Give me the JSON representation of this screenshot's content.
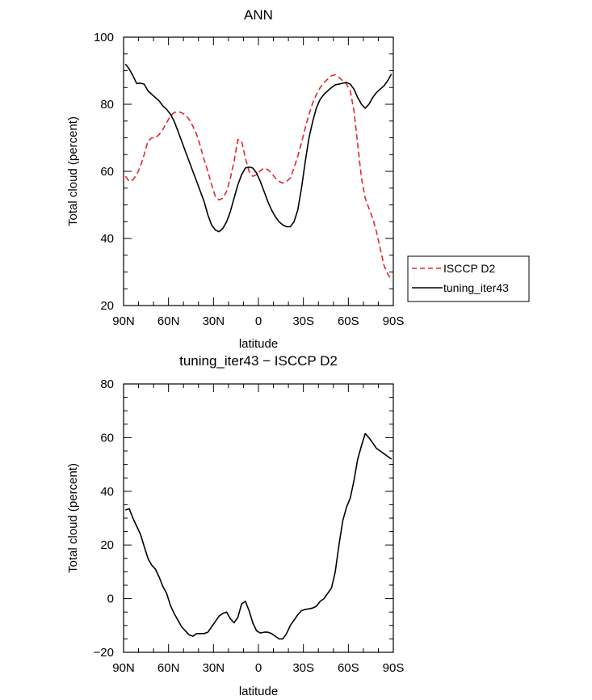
{
  "chart_data": [
    {
      "type": "line",
      "title": "ANN",
      "xlabel": "latitude",
      "ylabel": "Total cloud (percent)",
      "xlim": [
        -90,
        90
      ],
      "ylim": [
        20,
        100
      ],
      "xticks": [
        -90,
        -60,
        -30,
        0,
        30,
        60,
        90
      ],
      "xtick_labels": [
        "90N",
        "60N",
        "30N",
        "0",
        "30S",
        "60S",
        "90S"
      ],
      "yticks": [
        20,
        40,
        60,
        80,
        100
      ],
      "ytick_labels": [
        "20",
        "40",
        "60",
        "80",
        "100"
      ],
      "legend": "right",
      "series": [
        {
          "name": "ISCCP D2",
          "color": "#e8252b",
          "dash": "dashed",
          "x": [
            -88.75,
            -86.25,
            -83.75,
            -81.25,
            -78.75,
            -76.25,
            -73.75,
            -71.25,
            -68.75,
            -66.25,
            -63.75,
            -61.25,
            -58.75,
            -56.25,
            -53.75,
            -51.25,
            -48.75,
            -46.25,
            -43.75,
            -41.25,
            -38.75,
            -36.25,
            -33.75,
            -31.25,
            -28.75,
            -26.25,
            -23.75,
            -21.25,
            -18.75,
            -16.25,
            -13.75,
            -11.25,
            -8.75,
            -6.25,
            -3.75,
            -1.25,
            1.25,
            3.75,
            6.25,
            8.75,
            11.25,
            13.75,
            16.25,
            18.75,
            21.25,
            23.75,
            26.25,
            28.75,
            31.25,
            33.75,
            36.25,
            38.75,
            41.25,
            43.75,
            46.25,
            48.75,
            51.25,
            53.75,
            56.25,
            58.75,
            61.25,
            63.75,
            66.25,
            68.75,
            71.25,
            73.75,
            76.25,
            78.75,
            81.25,
            83.75,
            86.25,
            88.75
          ],
          "y": [
            58.5,
            57,
            57.5,
            59,
            61.5,
            65,
            69,
            70,
            70,
            71,
            72.5,
            74.5,
            76.5,
            77.5,
            77.8,
            77.5,
            76.8,
            75.5,
            73.5,
            71,
            67.5,
            63.5,
            60,
            56,
            52.5,
            51.5,
            52,
            54,
            58,
            63,
            69.5,
            69,
            64,
            60,
            58.5,
            59,
            60.2,
            61,
            60.5,
            59.5,
            58,
            57,
            56.5,
            57,
            58,
            61,
            64.5,
            68.5,
            73,
            77,
            80.5,
            83,
            85,
            86.5,
            87.5,
            88.5,
            88.8,
            88,
            87,
            86,
            84,
            78,
            68,
            58,
            52,
            49,
            46,
            42,
            37,
            32,
            29.5,
            27.5
          ]
        },
        {
          "name": "tuning_iter43",
          "color": "#000000",
          "dash": "solid",
          "x": [
            -88.75,
            -86.25,
            -83.75,
            -81.25,
            -78.75,
            -76.25,
            -73.75,
            -71.25,
            -68.75,
            -66.25,
            -63.75,
            -61.25,
            -58.75,
            -56.25,
            -53.75,
            -51.25,
            -48.75,
            -46.25,
            -43.75,
            -41.25,
            -38.75,
            -36.25,
            -33.75,
            -31.25,
            -28.75,
            -26.25,
            -23.75,
            -21.25,
            -18.75,
            -16.25,
            -13.75,
            -11.25,
            -8.75,
            -6.25,
            -3.75,
            -1.25,
            1.25,
            3.75,
            6.25,
            8.75,
            11.25,
            13.75,
            16.25,
            18.75,
            21.25,
            23.75,
            26.25,
            28.75,
            31.25,
            33.75,
            36.25,
            38.75,
            41.25,
            43.75,
            46.25,
            48.75,
            51.25,
            53.75,
            56.25,
            58.75,
            61.25,
            63.75,
            66.25,
            68.75,
            71.25,
            73.75,
            76.25,
            78.75,
            81.25,
            83.75,
            86.25,
            88.75
          ],
          "y": [
            92,
            90.5,
            88.5,
            86.2,
            86.3,
            86,
            84,
            83,
            82,
            81,
            79.5,
            78.5,
            77,
            75,
            72,
            69,
            66,
            63,
            60,
            57,
            54,
            51,
            47,
            44,
            42.5,
            42,
            43,
            45,
            48,
            52,
            56,
            59,
            61,
            61.3,
            61,
            59.5,
            57,
            54,
            51,
            48.5,
            46.5,
            45,
            44,
            43.5,
            43.5,
            45,
            48.5,
            55,
            63,
            70,
            75,
            79,
            81.5,
            83,
            84,
            85,
            85.8,
            86,
            86.3,
            86.5,
            86,
            84.5,
            82,
            80,
            78.8,
            80,
            82,
            83.5,
            84.5,
            85.5,
            87,
            89
          ]
        }
      ]
    },
    {
      "type": "line",
      "title": "tuning_iter43 − ISCCP D2",
      "xlabel": "latitude",
      "ylabel": "Total cloud (percent)",
      "xlim": [
        -90,
        90
      ],
      "ylim": [
        -20,
        80
      ],
      "xticks": [
        -90,
        -60,
        -30,
        0,
        30,
        60,
        90
      ],
      "xtick_labels": [
        "90N",
        "60N",
        "30N",
        "0",
        "30S",
        "60S",
        "90S"
      ],
      "yticks": [
        -20,
        0,
        20,
        40,
        60,
        80
      ],
      "ytick_labels": [
        "−20",
        "0",
        "20",
        "40",
        "60",
        "80"
      ],
      "series": [
        {
          "name": "",
          "color": "#000000",
          "dash": "solid",
          "x": [
            -88.75,
            -86.25,
            -83.75,
            -81.25,
            -78.75,
            -76.25,
            -73.75,
            -71.25,
            -68.75,
            -66.25,
            -63.75,
            -61.25,
            -58.75,
            -56.25,
            -53.75,
            -51.25,
            -48.75,
            -46.25,
            -43.75,
            -41.25,
            -38.75,
            -36.25,
            -33.75,
            -31.25,
            -28.75,
            -26.25,
            -23.75,
            -21.25,
            -18.75,
            -16.25,
            -13.75,
            -11.25,
            -8.75,
            -6.25,
            -3.75,
            -1.25,
            1.25,
            3.75,
            6.25,
            8.75,
            11.25,
            13.75,
            16.25,
            18.75,
            21.25,
            23.75,
            26.25,
            28.75,
            31.25,
            33.75,
            36.25,
            38.75,
            41.25,
            43.75,
            46.25,
            48.75,
            51.25,
            53.75,
            56.25,
            58.75,
            61.25,
            63.75,
            66.25,
            68.75,
            71.25,
            73.75,
            76.25,
            78.75,
            81.25,
            83.75,
            86.25,
            88.75
          ],
          "y": [
            33,
            33.5,
            30,
            27,
            24,
            19.5,
            15,
            12.5,
            11,
            8,
            4.5,
            2,
            -2.5,
            -5.5,
            -8,
            -10.5,
            -12,
            -13.5,
            -14,
            -13,
            -13,
            -13,
            -12.5,
            -10.5,
            -8.5,
            -6.5,
            -5.5,
            -5,
            -7.5,
            -9,
            -7,
            -2,
            -1,
            -4.5,
            -9,
            -12,
            -12.8,
            -12.5,
            -12.5,
            -13,
            -14,
            -15,
            -15,
            -13,
            -10,
            -8,
            -6,
            -4.5,
            -4,
            -3.8,
            -3.5,
            -2.8,
            -1,
            0,
            2,
            4,
            10,
            20,
            29,
            34,
            37.5,
            44,
            52,
            57,
            61.5,
            60,
            58,
            56,
            55,
            54,
            53,
            52
          ]
        }
      ]
    }
  ]
}
